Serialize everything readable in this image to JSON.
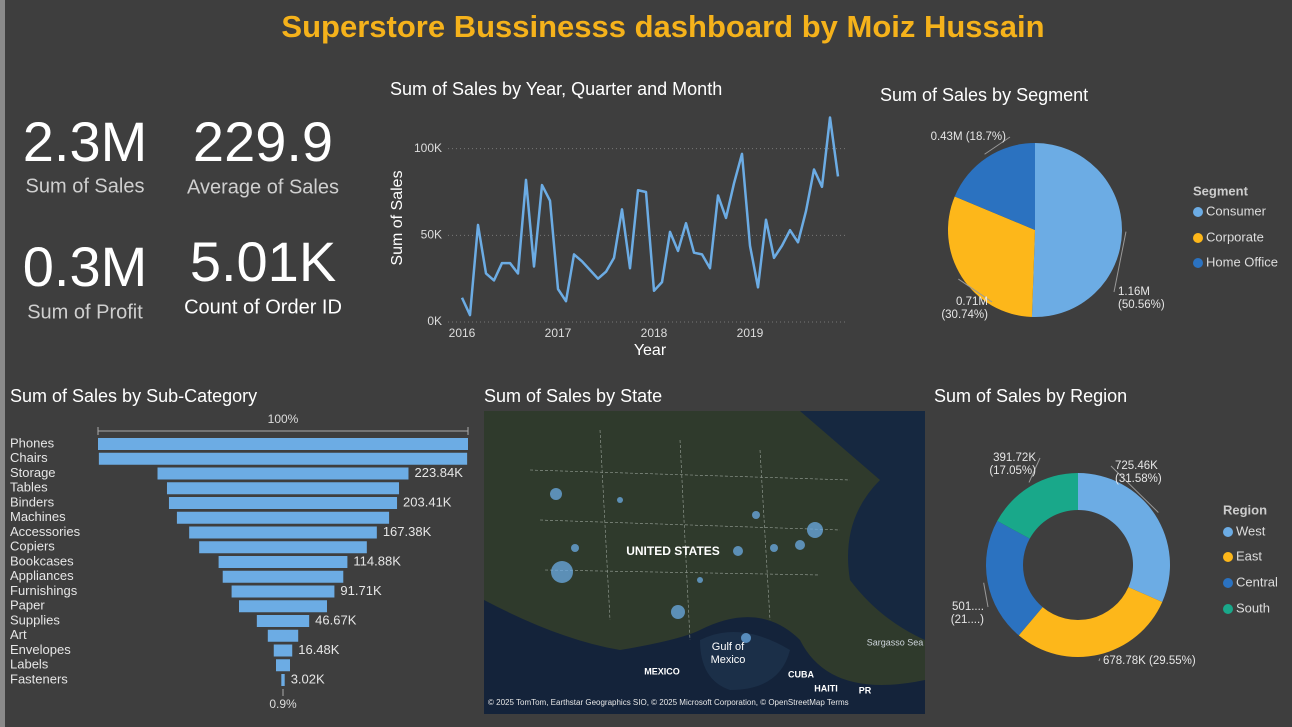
{
  "title": "Superstore Bussinesss dashboard by Moiz Hussain",
  "kpis": [
    {
      "value": "2.3M",
      "label": "Sum of Sales"
    },
    {
      "value": "229.9",
      "label": "Average of Sales"
    },
    {
      "value": "0.3M",
      "label": "Sum of Profit"
    },
    {
      "value": "5.01K",
      "label": "Count of Order ID"
    }
  ],
  "map": {
    "title": "Sum of Sales by State",
    "labels": [
      "UNITED STATES",
      "Gulf of",
      "Mexico",
      "MEXICO",
      "CUBA",
      "HAITI",
      "PR",
      "Sargasso Sea"
    ],
    "attribution": "© 2025 TomTom, Earthstar Geographics SIO, © 2025 Microsoft Corporation, © OpenStreetMap Terms"
  },
  "chart_data": [
    {
      "type": "line",
      "title": "Sum of Sales by Year, Quarter and Month",
      "xlabel": "Year",
      "ylabel": "Sum of Sales",
      "color": "#6cace4",
      "categories": [
        "2016",
        null,
        null,
        null,
        null,
        null,
        null,
        null,
        null,
        null,
        null,
        null,
        "2017",
        null,
        null,
        null,
        null,
        null,
        null,
        null,
        null,
        null,
        null,
        null,
        "2018",
        null,
        null,
        null,
        null,
        null,
        null,
        null,
        null,
        null,
        null,
        null,
        "2019",
        null,
        null,
        null,
        null,
        null,
        null,
        null,
        null,
        null,
        null,
        null
      ],
      "values": [
        14000,
        4000,
        56000,
        28000,
        24000,
        34000,
        34000,
        28000,
        82000,
        32000,
        79000,
        70000,
        19000,
        12000,
        39000,
        35000,
        30000,
        25000,
        29000,
        37000,
        65000,
        31000,
        76000,
        75000,
        18000,
        23000,
        52000,
        41000,
        57000,
        40000,
        39000,
        31000,
        73000,
        60000,
        80000,
        97000,
        44000,
        20000,
        59000,
        37000,
        44000,
        53000,
        46000,
        64000,
        88000,
        78000,
        118000,
        84000
      ],
      "ylim": [
        0,
        120000
      ],
      "yticks": [
        {
          "value": 0,
          "label": "0K"
        },
        {
          "value": 50000,
          "label": "50K"
        },
        {
          "value": 100000,
          "label": "100K"
        }
      ],
      "grid": true
    },
    {
      "type": "pie",
      "title": "Sum of Sales by Segment",
      "legend_title": "Segment",
      "categories": [
        "Consumer",
        "Corporate",
        "Home Office"
      ],
      "values": [
        50.56,
        30.74,
        18.7
      ],
      "value_labels": [
        [
          "1.16M",
          "(50.56%)"
        ],
        [
          "0.71M",
          "(30.74%)"
        ],
        [
          "0.43M (18.7%)"
        ]
      ],
      "colors": [
        "#6cace4",
        "#fdb71a",
        "#2b72c0"
      ]
    },
    {
      "type": "funnel",
      "title": "Sum of Sales by Sub-Category",
      "color": "#6cace4",
      "top_label": "100%",
      "bottom_label": "0.9%",
      "categories": [
        "Phones",
        "Chairs",
        "Storage",
        "Tables",
        "Binders",
        "Machines",
        "Accessories",
        "Copiers",
        "Bookcases",
        "Appliances",
        "Furnishings",
        "Paper",
        "Supplies",
        "Art",
        "Envelopes",
        "Labels",
        "Fasteners"
      ],
      "values": [
        330007,
        328449,
        223844,
        206966,
        203413,
        189239,
        167380,
        149528,
        114880,
        107532,
        91705,
        78479,
        46674,
        27119,
        16476,
        12486,
        3024
      ],
      "value_labels": [
        null,
        null,
        "223.84K",
        null,
        "203.41K",
        null,
        "167.38K",
        null,
        "114.88K",
        null,
        "91.71K",
        null,
        "46.67K",
        null,
        "16.48K",
        null,
        "3.02K"
      ]
    },
    {
      "type": "donut",
      "title": "Sum of Sales by Region",
      "legend_title": "Region",
      "categories": [
        "West",
        "East",
        "Central",
        "South"
      ],
      "values": [
        31.58,
        29.55,
        21.82,
        17.05
      ],
      "value_labels": [
        [
          "725.46K",
          "(31.58%)"
        ],
        [
          "678.78K (29.55%)"
        ],
        [
          "501....",
          "(21....)"
        ],
        [
          "391.72K",
          "(17.05%)"
        ]
      ],
      "colors": [
        "#6cace4",
        "#fdb71a",
        "#2b72c0",
        "#19a88a"
      ]
    }
  ]
}
